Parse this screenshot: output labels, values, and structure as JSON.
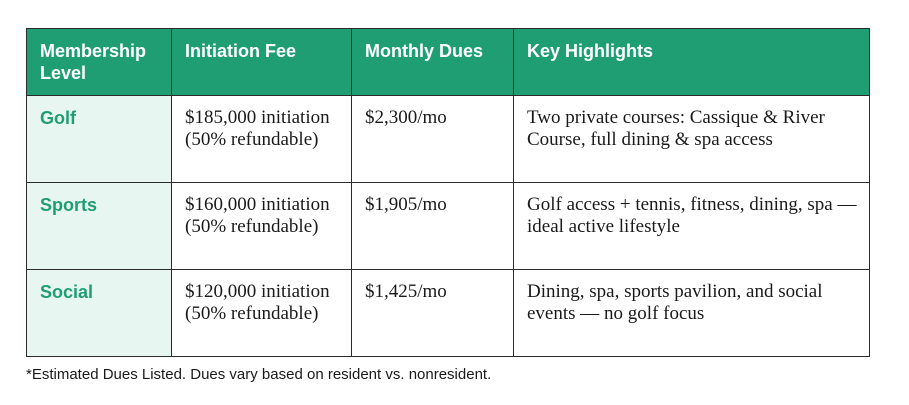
{
  "table": {
    "headers": [
      "Membership Level",
      "Initiation Fee",
      "Monthly Dues",
      "Key Highlights"
    ],
    "rows": [
      {
        "level": "Golf",
        "initiation": "$185,000 initiation (50% refundable)",
        "dues": "$2,300/mo",
        "highlights": "Two private courses: Cassique & River Course, full dining & spa access"
      },
      {
        "level": "Sports",
        "initiation": "$160,000 initiation (50% refundable)",
        "dues": "$1,905/mo",
        "highlights": "Golf access + tennis, fitness, dining, spa — ideal active lifestyle"
      },
      {
        "level": "Social",
        "initiation": "$120,000 initiation (50% refundable)",
        "dues": "$1,425/mo",
        "highlights": "Dining, spa, sports pavilion, and social events — no golf focus"
      }
    ]
  },
  "colors": {
    "header_bg": "#1f9e73",
    "level_bg": "#e8f6f1",
    "level_text": "#1f9e73"
  },
  "footnote": "*Estimated Dues Listed. Dues vary based on resident vs. nonresident."
}
